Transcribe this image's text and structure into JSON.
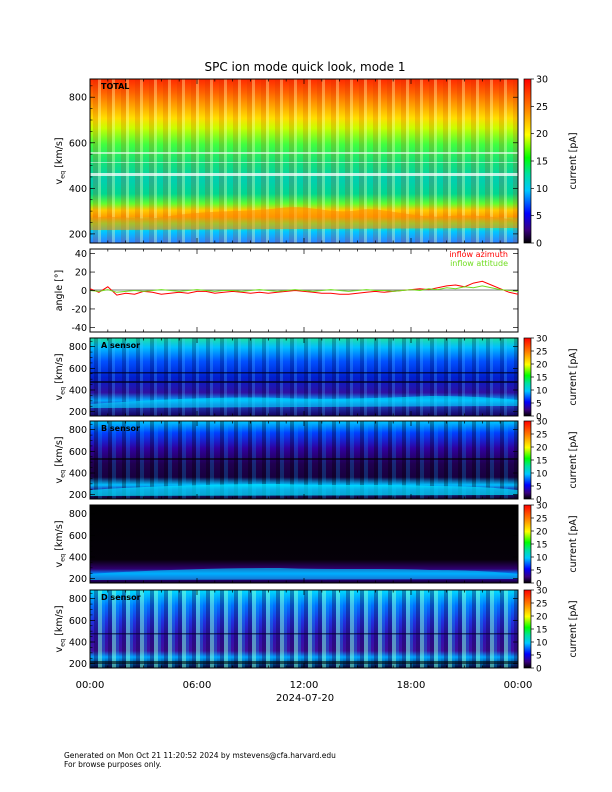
{
  "title": "SPC ion mode quick look, mode 1",
  "date_label": "2024-07-20",
  "footer": {
    "line1": "Generated on Mon Oct 21 11:20:52 2024 by mstevens@cfa.harvard.edu",
    "line2": "For browse purposes only."
  },
  "colorbar_label": "current [pA]",
  "chart_data": [
    {
      "type": "heatmap",
      "panel": "total",
      "label": "TOTAL",
      "ylabel": "v_eq [km/s]",
      "ylim": [
        160,
        880
      ],
      "yticks": [
        200,
        400,
        600,
        800
      ],
      "xlim_hours": [
        0,
        24
      ],
      "colorbar": {
        "ticks": [
          0,
          5,
          10,
          15,
          20,
          25,
          30
        ],
        "label": "current [pA]"
      },
      "description_values": {
        "beam_speed_kms": 270,
        "dominant_current_pA_high_v": 27
      }
    },
    {
      "type": "line",
      "panel": "angle",
      "ylabel": "angle [°]",
      "ylim": [
        -45,
        45
      ],
      "yticks": [
        -40,
        -20,
        0,
        20,
        40
      ],
      "xlim_hours": [
        0,
        24
      ],
      "legend_position": "top-right",
      "series": [
        {
          "name": "inflow azimuth",
          "color": "#ff0000",
          "x": [
            0,
            0.5,
            1,
            1.5,
            2,
            2.5,
            3,
            3.5,
            4,
            4.5,
            5,
            5.5,
            6,
            6.5,
            7,
            7.5,
            8,
            8.5,
            9,
            9.5,
            10,
            10.5,
            11,
            11.5,
            12,
            12.5,
            13,
            13.5,
            14,
            14.5,
            15,
            15.5,
            16,
            16.5,
            17,
            17.5,
            18,
            18.5,
            19,
            19.5,
            20,
            20.5,
            21,
            21.5,
            22,
            22.5,
            23,
            23.5,
            24
          ],
          "y": [
            2,
            -2,
            4,
            -5,
            -3,
            -4,
            -1,
            -2,
            -4,
            -3,
            -2,
            -3,
            -1,
            -1,
            -3,
            -2,
            -1,
            -2,
            -3,
            -2,
            -3,
            -2,
            -1,
            0,
            -1,
            -2,
            -3,
            -3,
            -4,
            -4,
            -3,
            -2,
            -1,
            -2,
            -1,
            0,
            1,
            2,
            1,
            3,
            5,
            6,
            4,
            8,
            10,
            6,
            2,
            -2,
            -4
          ]
        },
        {
          "name": "inflow attitude",
          "color": "#70dd20",
          "x": [
            0,
            0.5,
            1,
            1.5,
            2,
            2.5,
            3,
            3.5,
            4,
            4.5,
            5,
            5.5,
            6,
            6.5,
            7,
            7.5,
            8,
            8.5,
            9,
            9.5,
            10,
            10.5,
            11,
            11.5,
            12,
            12.5,
            13,
            13.5,
            14,
            14.5,
            15,
            15.5,
            16,
            16.5,
            17,
            17.5,
            18,
            18.5,
            19,
            19.5,
            20,
            20.5,
            21,
            21.5,
            22,
            22.5,
            23,
            23.5,
            24
          ],
          "y": [
            0,
            -1,
            1,
            -2,
            -1,
            0,
            -1,
            0,
            1,
            0,
            -1,
            0,
            1,
            0,
            -1,
            0,
            0,
            -1,
            0,
            1,
            0,
            -1,
            0,
            1,
            0,
            -1,
            0,
            1,
            0,
            -1,
            0,
            1,
            0,
            0,
            -1,
            0,
            1,
            0,
            2,
            1,
            3,
            2,
            4,
            3,
            5,
            3,
            1,
            0,
            -1
          ]
        }
      ]
    },
    {
      "type": "heatmap",
      "panel": "A",
      "label": "A sensor",
      "ylabel": "v_eq [km/s]",
      "ylim": [
        160,
        880
      ],
      "yticks": [
        200,
        400,
        600,
        800
      ]
    },
    {
      "type": "heatmap",
      "panel": "B",
      "label": "B sensor",
      "ylabel": "v_eq [km/s]",
      "ylim": [
        160,
        880
      ],
      "yticks": [
        200,
        400,
        600,
        800
      ]
    },
    {
      "type": "heatmap",
      "panel": "C",
      "label": "",
      "ylabel": "v_eq [km/s]",
      "ylim": [
        160,
        880
      ],
      "yticks": [
        200,
        400,
        600,
        800
      ]
    },
    {
      "type": "heatmap",
      "panel": "D",
      "label": "D sensor",
      "ylabel": "v_eq [km/s]",
      "ylim": [
        160,
        880
      ],
      "yticks": [
        200,
        400,
        600,
        800
      ]
    }
  ],
  "x_axis": {
    "ticks": [
      "00:00",
      "06:00",
      "12:00",
      "18:00",
      "00:00"
    ],
    "hours": [
      0,
      6,
      12,
      18,
      24
    ]
  }
}
